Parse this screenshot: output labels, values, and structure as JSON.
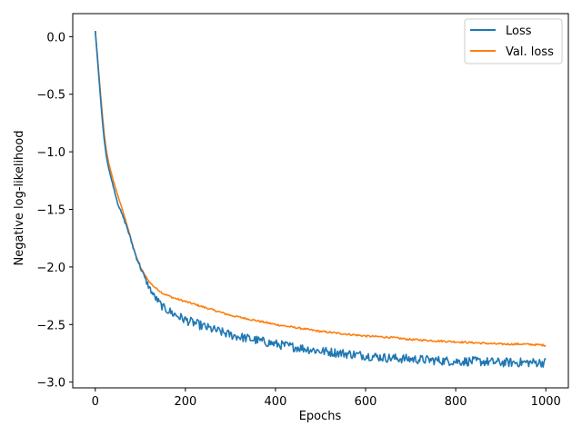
{
  "chart_data": {
    "type": "line",
    "title": "",
    "xlabel": "Epochs",
    "ylabel": "Negative log-likelihood",
    "xlim": [
      -50,
      1050
    ],
    "ylim": [
      -3.05,
      0.2
    ],
    "xticks": [
      0,
      200,
      400,
      600,
      800,
      1000
    ],
    "yticks": [
      0.0,
      -0.5,
      -1.0,
      -1.5,
      -2.0,
      -2.5,
      -3.0
    ],
    "xtick_labels": [
      "0",
      "200",
      "400",
      "600",
      "800",
      "1000"
    ],
    "ytick_labels": [
      "0.0",
      "−0.5",
      "−1.0",
      "−1.5",
      "−2.0",
      "−2.5",
      "−3.0"
    ],
    "grid": false,
    "legend_position": "top-right",
    "series": [
      {
        "name": "Loss",
        "color": "#1f77b4",
        "noise": 0.04,
        "points": [
          [
            0,
            0.05
          ],
          [
            5,
            -0.2
          ],
          [
            10,
            -0.45
          ],
          [
            15,
            -0.7
          ],
          [
            20,
            -0.9
          ],
          [
            25,
            -1.05
          ],
          [
            30,
            -1.15
          ],
          [
            40,
            -1.3
          ],
          [
            50,
            -1.45
          ],
          [
            60,
            -1.55
          ],
          [
            70,
            -1.65
          ],
          [
            80,
            -1.78
          ],
          [
            90,
            -1.9
          ],
          [
            100,
            -2.0
          ],
          [
            110,
            -2.1
          ],
          [
            120,
            -2.18
          ],
          [
            130,
            -2.25
          ],
          [
            140,
            -2.3
          ],
          [
            150,
            -2.35
          ],
          [
            175,
            -2.41
          ],
          [
            200,
            -2.46
          ],
          [
            250,
            -2.53
          ],
          [
            300,
            -2.59
          ],
          [
            350,
            -2.63
          ],
          [
            400,
            -2.67
          ],
          [
            450,
            -2.7
          ],
          [
            500,
            -2.73
          ],
          [
            550,
            -2.75
          ],
          [
            600,
            -2.77
          ],
          [
            650,
            -2.79
          ],
          [
            700,
            -2.8
          ],
          [
            750,
            -2.81
          ],
          [
            800,
            -2.82
          ],
          [
            850,
            -2.82
          ],
          [
            900,
            -2.83
          ],
          [
            950,
            -2.83
          ],
          [
            1000,
            -2.83
          ]
        ]
      },
      {
        "name": "Val. loss",
        "color": "#ff7f0e",
        "noise": 0.008,
        "points": [
          [
            0,
            0.05
          ],
          [
            5,
            -0.18
          ],
          [
            10,
            -0.42
          ],
          [
            15,
            -0.65
          ],
          [
            20,
            -0.85
          ],
          [
            25,
            -1.0
          ],
          [
            30,
            -1.1
          ],
          [
            40,
            -1.25
          ],
          [
            50,
            -1.38
          ],
          [
            60,
            -1.5
          ],
          [
            70,
            -1.63
          ],
          [
            80,
            -1.77
          ],
          [
            90,
            -1.9
          ],
          [
            100,
            -2.0
          ],
          [
            110,
            -2.07
          ],
          [
            120,
            -2.13
          ],
          [
            130,
            -2.17
          ],
          [
            140,
            -2.2
          ],
          [
            150,
            -2.23
          ],
          [
            175,
            -2.27
          ],
          [
            200,
            -2.3
          ],
          [
            250,
            -2.36
          ],
          [
            300,
            -2.42
          ],
          [
            350,
            -2.46
          ],
          [
            400,
            -2.5
          ],
          [
            450,
            -2.53
          ],
          [
            500,
            -2.56
          ],
          [
            550,
            -2.58
          ],
          [
            600,
            -2.6
          ],
          [
            650,
            -2.61
          ],
          [
            700,
            -2.63
          ],
          [
            750,
            -2.64
          ],
          [
            800,
            -2.65
          ],
          [
            850,
            -2.66
          ],
          [
            900,
            -2.67
          ],
          [
            950,
            -2.67
          ],
          [
            1000,
            -2.68
          ]
        ]
      }
    ]
  }
}
